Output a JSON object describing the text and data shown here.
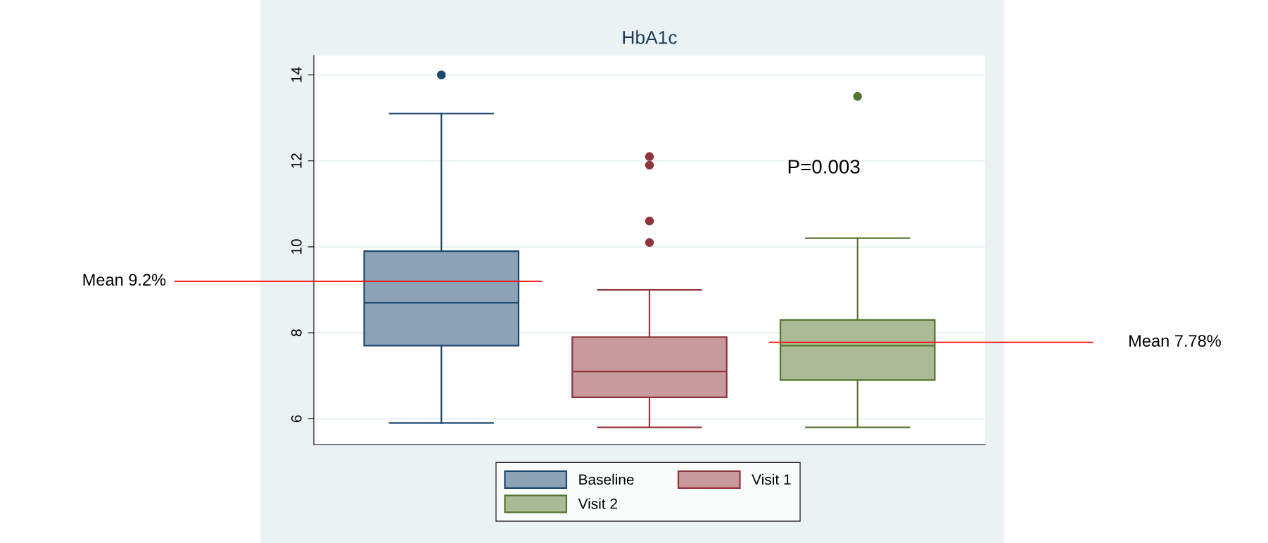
{
  "chart_data": {
    "type": "box",
    "title": "HbA1c",
    "categories": [
      null
    ],
    "series": [
      {
        "name": "Baseline",
        "color": "#1a476f",
        "boxes": [
          {
            "low": 5.9,
            "q1": 7.7,
            "median": 8.7,
            "q3": 9.9,
            "high": 13.1,
            "outliers": [
              14.0
            ]
          }
        ]
      },
      {
        "name": "Visit 1",
        "color": "#90353b",
        "boxes": [
          {
            "low": 5.8,
            "q1": 6.5,
            "median": 7.1,
            "q3": 7.9,
            "high": 9.0,
            "outliers": [
              12.1,
              11.9,
              10.6,
              10.1
            ]
          }
        ]
      },
      {
        "name": "Visit 2",
        "color": "#55752f",
        "boxes": [
          {
            "low": 5.8,
            "q1": 6.9,
            "median": 7.7,
            "q3": 8.3,
            "high": 10.2,
            "outliers": [
              13.5
            ]
          }
        ]
      }
    ],
    "ylim": [
      5.4,
      14.45
    ],
    "yticks": [
      6,
      8,
      10,
      12,
      14
    ],
    "grid": "y",
    "legend": "bottom",
    "tick_labels": "y",
    "ref_lines": [
      {
        "axis": "y",
        "value": 9.2,
        "label": "Mean 9.2%",
        "color": "#ff0000"
      },
      {
        "axis": "y",
        "value": 7.78,
        "label": "Mean 7.78%",
        "color": "#ff0000"
      }
    ],
    "annotations": [
      "P=0.003"
    ]
  }
}
